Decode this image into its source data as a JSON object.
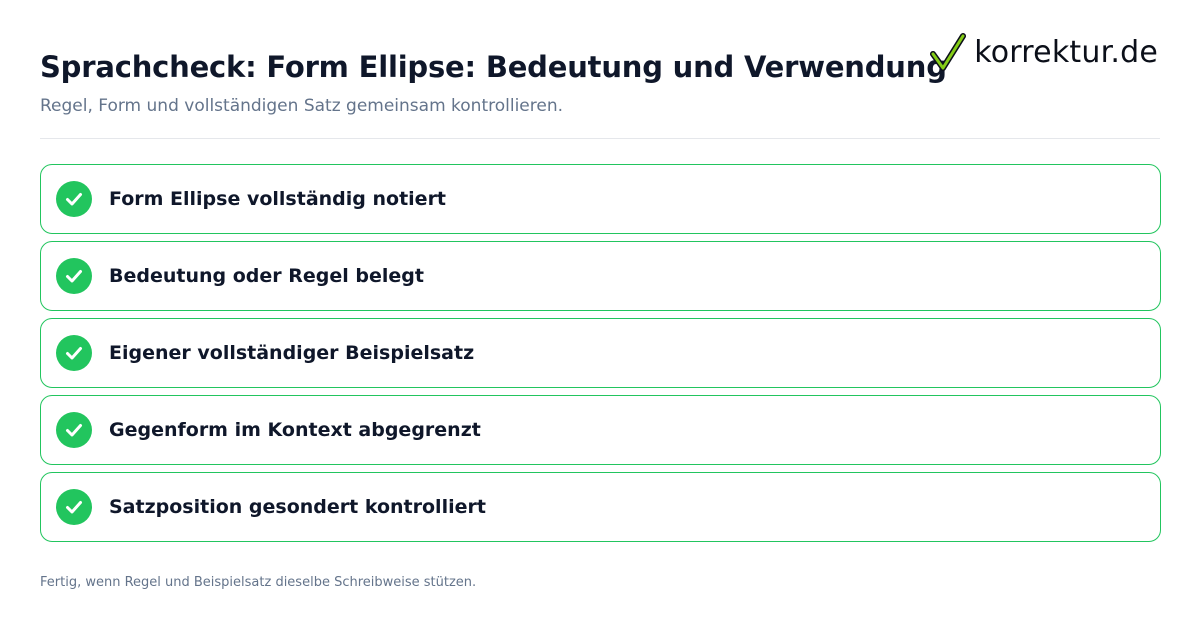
{
  "header": {
    "title": "Sprachcheck: Form Ellipse: Bedeutung und Verwendung",
    "subtitle": "Regel, Form und vollständigen Satz gemeinsam kontrollieren."
  },
  "brand": {
    "name": "korrektur.de",
    "icon": "checkmark-icon",
    "icon_color": "#84cc16"
  },
  "checklist": {
    "status_color": "#22c55e",
    "items": [
      {
        "label": "Form Ellipse vollständig notiert",
        "checked": true
      },
      {
        "label": "Bedeutung oder Regel belegt",
        "checked": true
      },
      {
        "label": "Eigener vollständiger Beispielsatz",
        "checked": true
      },
      {
        "label": "Gegenform im Kontext abgegrenzt",
        "checked": true
      },
      {
        "label": "Satzposition gesondert kontrolliert",
        "checked": true
      }
    ]
  },
  "footer": {
    "note": "Fertig, wenn Regel und Beispielsatz dieselbe Schreibweise stützen."
  }
}
